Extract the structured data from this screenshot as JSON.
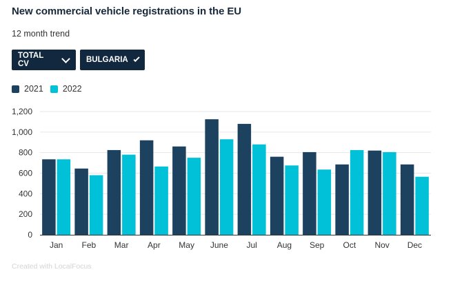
{
  "header": {
    "title": "New commercial vehicle registrations in the EU",
    "subtitle": "12 month trend"
  },
  "filters": {
    "vehicle_type_label": "TOTAL CV",
    "country_label": "BULGARIA",
    "chevron_icon": "chevron-down-icon"
  },
  "footer": {
    "credit": "Created with LocalFocus"
  },
  "colors": {
    "series_2021": "#1c4260",
    "series_2022": "#00c1d8",
    "gridline": "#e6e6e6",
    "axis": "#333333"
  },
  "chart_data": {
    "type": "bar",
    "title": "New commercial vehicle registrations in the EU",
    "subtitle": "12 month trend",
    "xlabel": "",
    "ylabel": "",
    "ylim": [
      0,
      1200
    ],
    "yticks": [
      0,
      200,
      400,
      600,
      800,
      "1,000",
      "1,200"
    ],
    "ytick_values": [
      0,
      200,
      400,
      600,
      800,
      1000,
      1200
    ],
    "grid": true,
    "legend_position": "top-left",
    "categories": [
      "Jan",
      "Feb",
      "Mar",
      "Apr",
      "May",
      "June",
      "Jul",
      "Aug",
      "Sep",
      "Oct",
      "Nov",
      "Dec"
    ],
    "series": [
      {
        "name": "2021",
        "values": [
          735,
          645,
          825,
          920,
          860,
          1125,
          1080,
          760,
          805,
          685,
          820,
          685
        ]
      },
      {
        "name": "2022",
        "values": [
          735,
          580,
          780,
          665,
          750,
          930,
          880,
          675,
          635,
          825,
          805,
          565
        ]
      }
    ]
  }
}
